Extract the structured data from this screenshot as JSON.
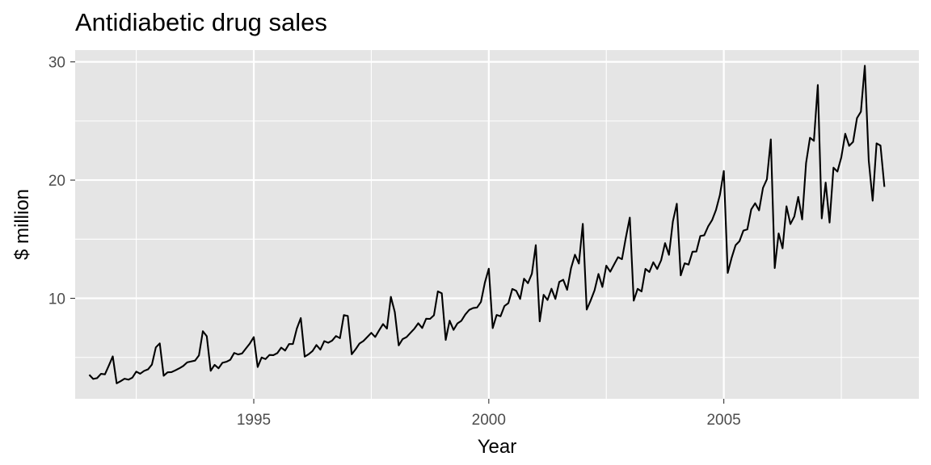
{
  "chart_data": {
    "type": "line",
    "title": "Antidiabetic drug sales",
    "xlabel": "Year",
    "ylabel": "$ million",
    "xlim": [
      1991.2,
      2009.15
    ],
    "ylim": [
      1.5,
      31.0
    ],
    "grid": true,
    "x_ticks": [
      1995,
      2000,
      2005
    ],
    "x_tick_labels": [
      "1995",
      "2000",
      "2005"
    ],
    "y_ticks": [
      10,
      20,
      30
    ],
    "y_tick_labels": [
      "10",
      "20",
      "30"
    ],
    "line_color": "#000000",
    "panel_color": "#e5e5e5",
    "start": "1991-07",
    "series": [
      {
        "values": [
          3.53,
          3.18,
          3.25,
          3.61,
          3.57,
          4.31,
          5.09,
          2.81,
          2.99,
          3.2,
          3.12,
          3.29,
          3.8,
          3.62,
          3.86,
          3.99,
          4.4,
          5.85,
          6.19,
          3.45,
          3.74,
          3.76,
          3.91,
          4.08,
          4.28,
          4.58,
          4.66,
          4.73,
          5.17,
          7.22,
          6.79,
          3.87,
          4.37,
          4.08,
          4.55,
          4.63,
          4.8,
          5.38,
          5.25,
          5.33,
          5.76,
          6.18,
          6.72,
          4.19,
          4.99,
          4.86,
          5.21,
          5.19,
          5.36,
          5.83,
          5.58,
          6.13,
          6.14,
          7.45,
          8.33,
          5.07,
          5.27,
          5.54,
          6.05,
          5.66,
          6.38,
          6.24,
          6.42,
          6.81,
          6.63,
          8.58,
          8.51,
          5.27,
          5.69,
          6.18,
          6.39,
          6.73,
          7.08,
          6.73,
          7.29,
          7.82,
          7.44,
          10.13,
          8.84,
          6.02,
          6.55,
          6.72,
          7.08,
          7.43,
          7.89,
          7.49,
          8.27,
          8.26,
          8.57,
          10.59,
          10.42,
          6.48,
          8.11,
          7.33,
          7.88,
          8.1,
          8.63,
          9.02,
          9.18,
          9.22,
          9.7,
          11.33,
          12.51,
          7.48,
          8.59,
          8.48,
          9.35,
          9.59,
          10.79,
          10.64,
          9.95,
          11.66,
          11.28,
          12.08,
          14.5,
          8.05,
          10.3,
          9.86,
          10.81,
          9.95,
          11.39,
          11.57,
          10.72,
          12.55,
          13.69,
          12.94,
          16.3,
          9.05,
          9.81,
          10.68,
          12.06,
          10.96,
          12.76,
          12.25,
          12.87,
          13.48,
          13.31,
          15.15,
          16.83,
          9.8,
          10.8,
          10.58,
          12.49,
          12.23,
          13.05,
          12.48,
          13.22,
          14.67,
          13.68,
          16.51,
          18.0,
          11.94,
          12.96,
          12.85,
          13.94,
          13.96,
          15.27,
          15.33,
          16.08,
          16.61,
          17.47,
          18.74,
          20.77,
          12.15,
          13.43,
          14.49,
          14.83,
          15.73,
          15.83,
          17.52,
          18.04,
          17.44,
          19.34,
          20.07,
          23.44,
          12.56,
          15.49,
          14.23,
          17.78,
          16.28,
          16.92,
          18.58,
          16.67,
          21.44,
          23.58,
          23.32,
          28.04,
          16.76,
          19.79,
          16.41,
          21.05,
          20.72,
          21.93,
          23.92,
          22.9,
          23.23,
          25.24,
          25.79,
          29.67,
          21.65,
          18.26,
          23.11,
          22.92,
          19.43
        ]
      }
    ]
  }
}
